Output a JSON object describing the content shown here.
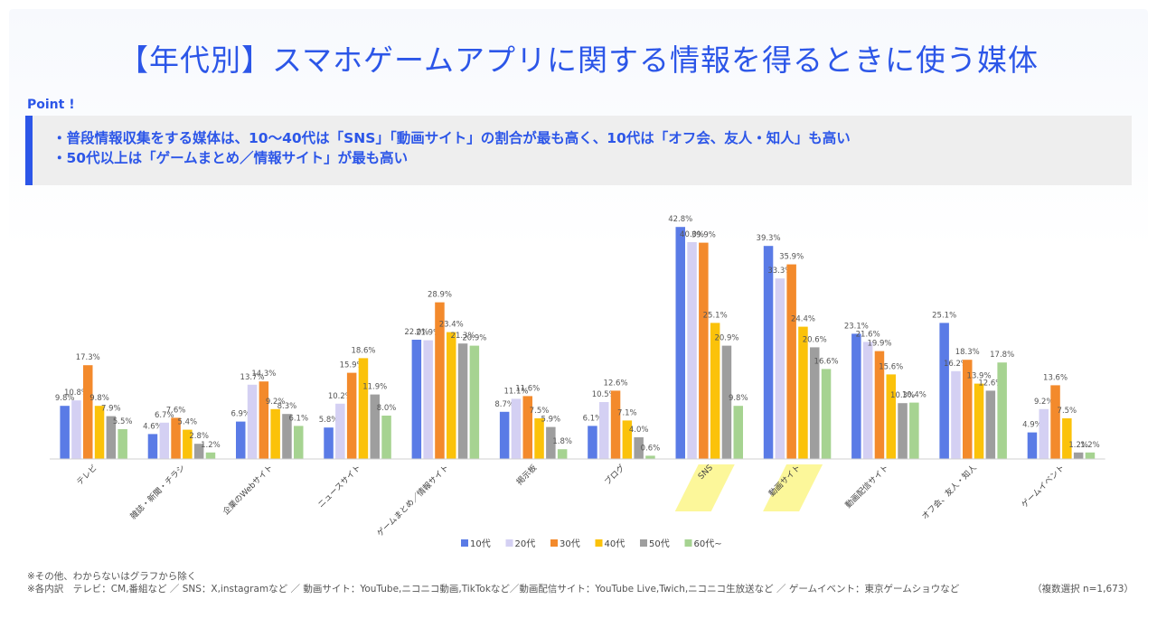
{
  "title": "【年代別】スマホゲームアプリに関する情報を得るときに使う媒体",
  "point": {
    "label": "Point !",
    "lines": [
      "・普段情報収集をする媒体は、10〜40代は「SNS」「動画サイト」の割合が最も高く、10代は「オフ会、友人・知人」も高い",
      "・50代以上は「ゲームまとめ／情報サイト」が最も高い"
    ]
  },
  "footer": {
    "note1": "※その他、わからないはグラフから除く",
    "note2": "※各内訳　テレビ：CM,番組など ／ SNS：X,instagramなど ／ 動画サイト：YouTube,ニコニコ動画,TikTokなど／動画配信サイト：YouTube Live,Twich,ニコニコ生放送など ／ ゲームイベント：東京ゲームショウなど",
    "sample": "（複数選択 n=1,673）"
  },
  "chart_data": {
    "type": "bar",
    "categories": [
      "テレビ",
      "雑誌・新聞・チラシ",
      "企業のWebサイト",
      "ニュースサイト",
      "ゲームまとめ／情報サイト",
      "掲示板",
      "ブログ",
      "SNS",
      "動画サイト",
      "動画配信サイト",
      "オフ会、友人・知人",
      "ゲームイベント"
    ],
    "highlighted_categories": [
      "SNS",
      "動画サイト"
    ],
    "series": [
      {
        "name": "10代",
        "color": "#5a7be6",
        "values": [
          9.8,
          4.6,
          6.9,
          5.8,
          22.0,
          8.7,
          6.1,
          42.8,
          39.3,
          23.1,
          25.1,
          4.9
        ]
      },
      {
        "name": "20代",
        "color": "#d4d0f3",
        "values": [
          10.8,
          6.7,
          13.7,
          10.2,
          21.9,
          11.1,
          10.5,
          40.0,
          33.3,
          21.6,
          16.2,
          9.2
        ]
      },
      {
        "name": "30代",
        "color": "#f38a2c",
        "values": [
          17.3,
          7.6,
          14.3,
          15.9,
          28.9,
          11.6,
          12.6,
          39.9,
          35.9,
          19.9,
          18.3,
          13.6
        ]
      },
      {
        "name": "40代",
        "color": "#fbc20a",
        "values": [
          9.8,
          5.4,
          9.2,
          18.6,
          23.4,
          7.5,
          7.1,
          25.1,
          24.4,
          15.6,
          13.9,
          7.5
        ]
      },
      {
        "name": "50代",
        "color": "#9e9e9e",
        "values": [
          7.9,
          2.8,
          8.3,
          11.9,
          21.3,
          5.9,
          4.0,
          20.9,
          20.6,
          10.3,
          12.6,
          1.2
        ]
      },
      {
        "name": "60代~",
        "color": "#a6d391",
        "values": [
          5.5,
          1.2,
          6.1,
          8.0,
          20.9,
          1.8,
          0.6,
          9.8,
          16.6,
          10.4,
          17.8,
          1.2
        ]
      }
    ],
    "ylim": [
      0,
      45
    ],
    "legend_position": "bottom",
    "grid": false
  }
}
